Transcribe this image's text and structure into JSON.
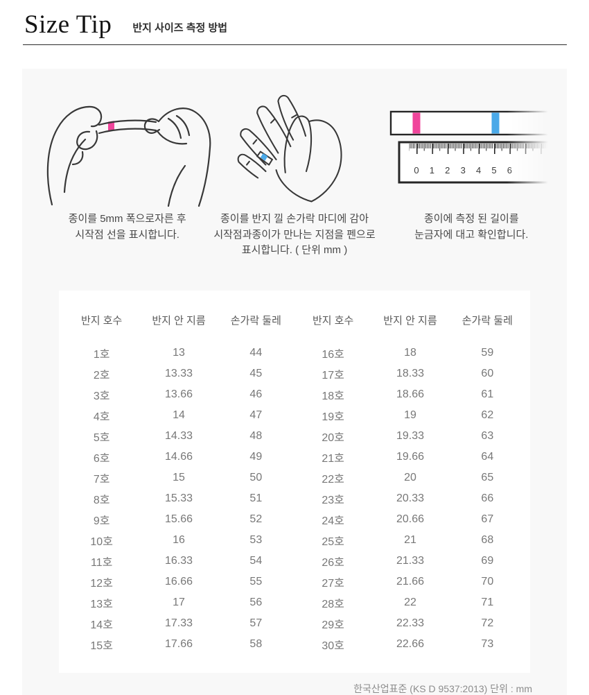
{
  "header": {
    "title": "Size Tip",
    "subtitle": "반지 사이즈 측정 방법"
  },
  "steps": [
    {
      "icon": "hands-stretch-paper-strip-icon",
      "caption_lines": [
        "종이를 5mm 폭으로자른 후",
        "시작점 선을 표시합니다."
      ]
    },
    {
      "icon": "paper-wrapped-finger-icon",
      "caption_lines": [
        "종이를 반지 낄 손가락 마디에 감아",
        "시작점과종이가 만나는 지점을 펜으로",
        "표시합니다. ( 단위 mm )"
      ]
    },
    {
      "icon": "ruler-measure-icon",
      "caption_lines": [
        "종이에 측정 된 길이를",
        "눈금자에 대고 확인합니다."
      ]
    }
  ],
  "ruler": {
    "numbers": [
      "0",
      "1",
      "2",
      "3",
      "4",
      "5",
      "6"
    ]
  },
  "table": {
    "headers": [
      "반지 호수",
      "반지 안 지름",
      "손가락 둘레",
      "반지 호수",
      "반지 안 지름",
      "손가락 둘레"
    ],
    "rows": [
      [
        "1호",
        "13",
        "44",
        "16호",
        "18",
        "59"
      ],
      [
        "2호",
        "13.33",
        "45",
        "17호",
        "18.33",
        "60"
      ],
      [
        "3호",
        "13.66",
        "46",
        "18호",
        "18.66",
        "61"
      ],
      [
        "4호",
        "14",
        "47",
        "19호",
        "19",
        "62"
      ],
      [
        "5호",
        "14.33",
        "48",
        "20호",
        "19.33",
        "63"
      ],
      [
        "6호",
        "14.66",
        "49",
        "21호",
        "19.66",
        "64"
      ],
      [
        "7호",
        "15",
        "50",
        "22호",
        "20",
        "65"
      ],
      [
        "8호",
        "15.33",
        "51",
        "23호",
        "20.33",
        "66"
      ],
      [
        "9호",
        "15.66",
        "52",
        "24호",
        "20.66",
        "67"
      ],
      [
        "10호",
        "16",
        "53",
        "25호",
        "21",
        "68"
      ],
      [
        "11호",
        "16.33",
        "54",
        "26호",
        "21.33",
        "69"
      ],
      [
        "12호",
        "16.66",
        "55",
        "27호",
        "21.66",
        "70"
      ],
      [
        "13호",
        "17",
        "56",
        "28호",
        "22",
        "71"
      ],
      [
        "14호",
        "17.33",
        "57",
        "29호",
        "22.33",
        "72"
      ],
      [
        "15호",
        "17.66",
        "58",
        "30호",
        "22.66",
        "73"
      ]
    ]
  },
  "footer": {
    "note": "한국산업표준 (KS D 9537:2013) 단위 : mm"
  },
  "colors": {
    "pink": "#f0459b",
    "blue": "#4aa9e8",
    "line": "#383838",
    "panel_bg": "#f8f8f8"
  }
}
